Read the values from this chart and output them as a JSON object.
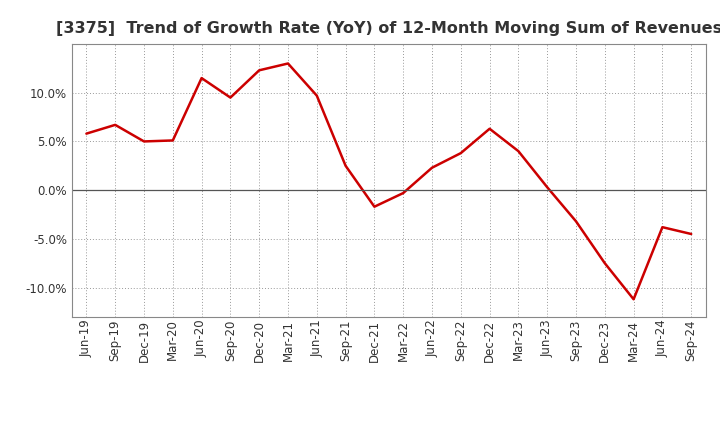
{
  "title": "[3375]  Trend of Growth Rate (YoY) of 12-Month Moving Sum of Revenues",
  "x_labels": [
    "Jun-19",
    "Sep-19",
    "Dec-19",
    "Mar-20",
    "Jun-20",
    "Sep-20",
    "Dec-20",
    "Mar-21",
    "Jun-21",
    "Sep-21",
    "Dec-21",
    "Mar-22",
    "Jun-22",
    "Sep-22",
    "Dec-22",
    "Mar-23",
    "Jun-23",
    "Sep-23",
    "Dec-23",
    "Mar-24",
    "Jun-24",
    "Sep-24"
  ],
  "y_values": [
    5.8,
    6.7,
    5.0,
    5.1,
    11.5,
    9.5,
    12.3,
    13.0,
    9.7,
    2.5,
    -1.7,
    -0.3,
    2.3,
    3.8,
    6.3,
    4.0,
    0.3,
    -3.2,
    -7.5,
    -11.2,
    -3.8,
    -4.5
  ],
  "line_color": "#cc0000",
  "line_width": 1.8,
  "ylim": [
    -13.0,
    15.0
  ],
  "yticks": [
    -10.0,
    -5.0,
    0.0,
    5.0,
    10.0
  ],
  "background_color": "#ffffff",
  "grid_color": "#999999",
  "title_fontsize": 11.5,
  "tick_fontsize": 8.5,
  "title_color": "#333333",
  "tick_color": "#333333"
}
